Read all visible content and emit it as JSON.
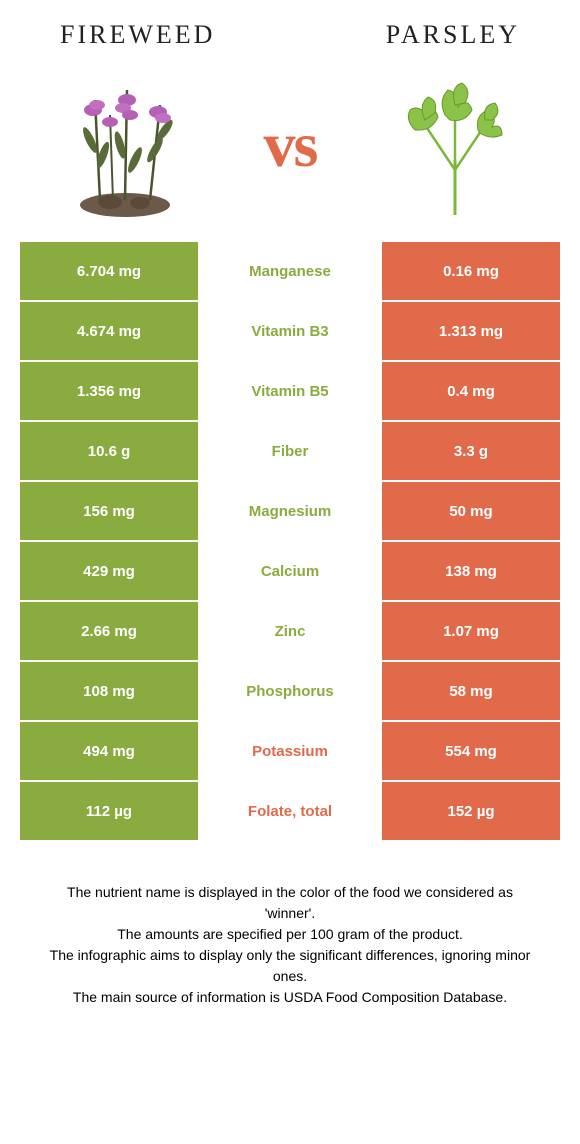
{
  "header": {
    "left_title": "Fireweed",
    "right_title": "Parsley",
    "vs": "vs"
  },
  "colors": {
    "left": "#8aab3f",
    "right": "#e06a4a",
    "background": "#ffffff"
  },
  "table": {
    "rows": [
      {
        "left": "6.704 mg",
        "mid": "Manganese",
        "winner": "left",
        "right": "0.16 mg"
      },
      {
        "left": "4.674 mg",
        "mid": "Vitamin B3",
        "winner": "left",
        "right": "1.313 mg"
      },
      {
        "left": "1.356 mg",
        "mid": "Vitamin B5",
        "winner": "left",
        "right": "0.4 mg"
      },
      {
        "left": "10.6 g",
        "mid": "Fiber",
        "winner": "left",
        "right": "3.3 g"
      },
      {
        "left": "156 mg",
        "mid": "Magnesium",
        "winner": "left",
        "right": "50 mg"
      },
      {
        "left": "429 mg",
        "mid": "Calcium",
        "winner": "left",
        "right": "138 mg"
      },
      {
        "left": "2.66 mg",
        "mid": "Zinc",
        "winner": "left",
        "right": "1.07 mg"
      },
      {
        "left": "108 mg",
        "mid": "Phosphorus",
        "winner": "left",
        "right": "58 mg"
      },
      {
        "left": "494 mg",
        "mid": "Potassium",
        "winner": "right",
        "right": "554 mg"
      },
      {
        "left": "112 µg",
        "mid": "Folate, total",
        "winner": "right",
        "right": "152 µg"
      }
    ]
  },
  "footer": {
    "line1": "The nutrient name is displayed in the color of the food we considered as 'winner'.",
    "line2": "The amounts are specified per 100 gram of the product.",
    "line3": "The infographic aims to display only the significant differences, ignoring minor ones.",
    "line4": "The main source of information is USDA Food Composition Database."
  }
}
